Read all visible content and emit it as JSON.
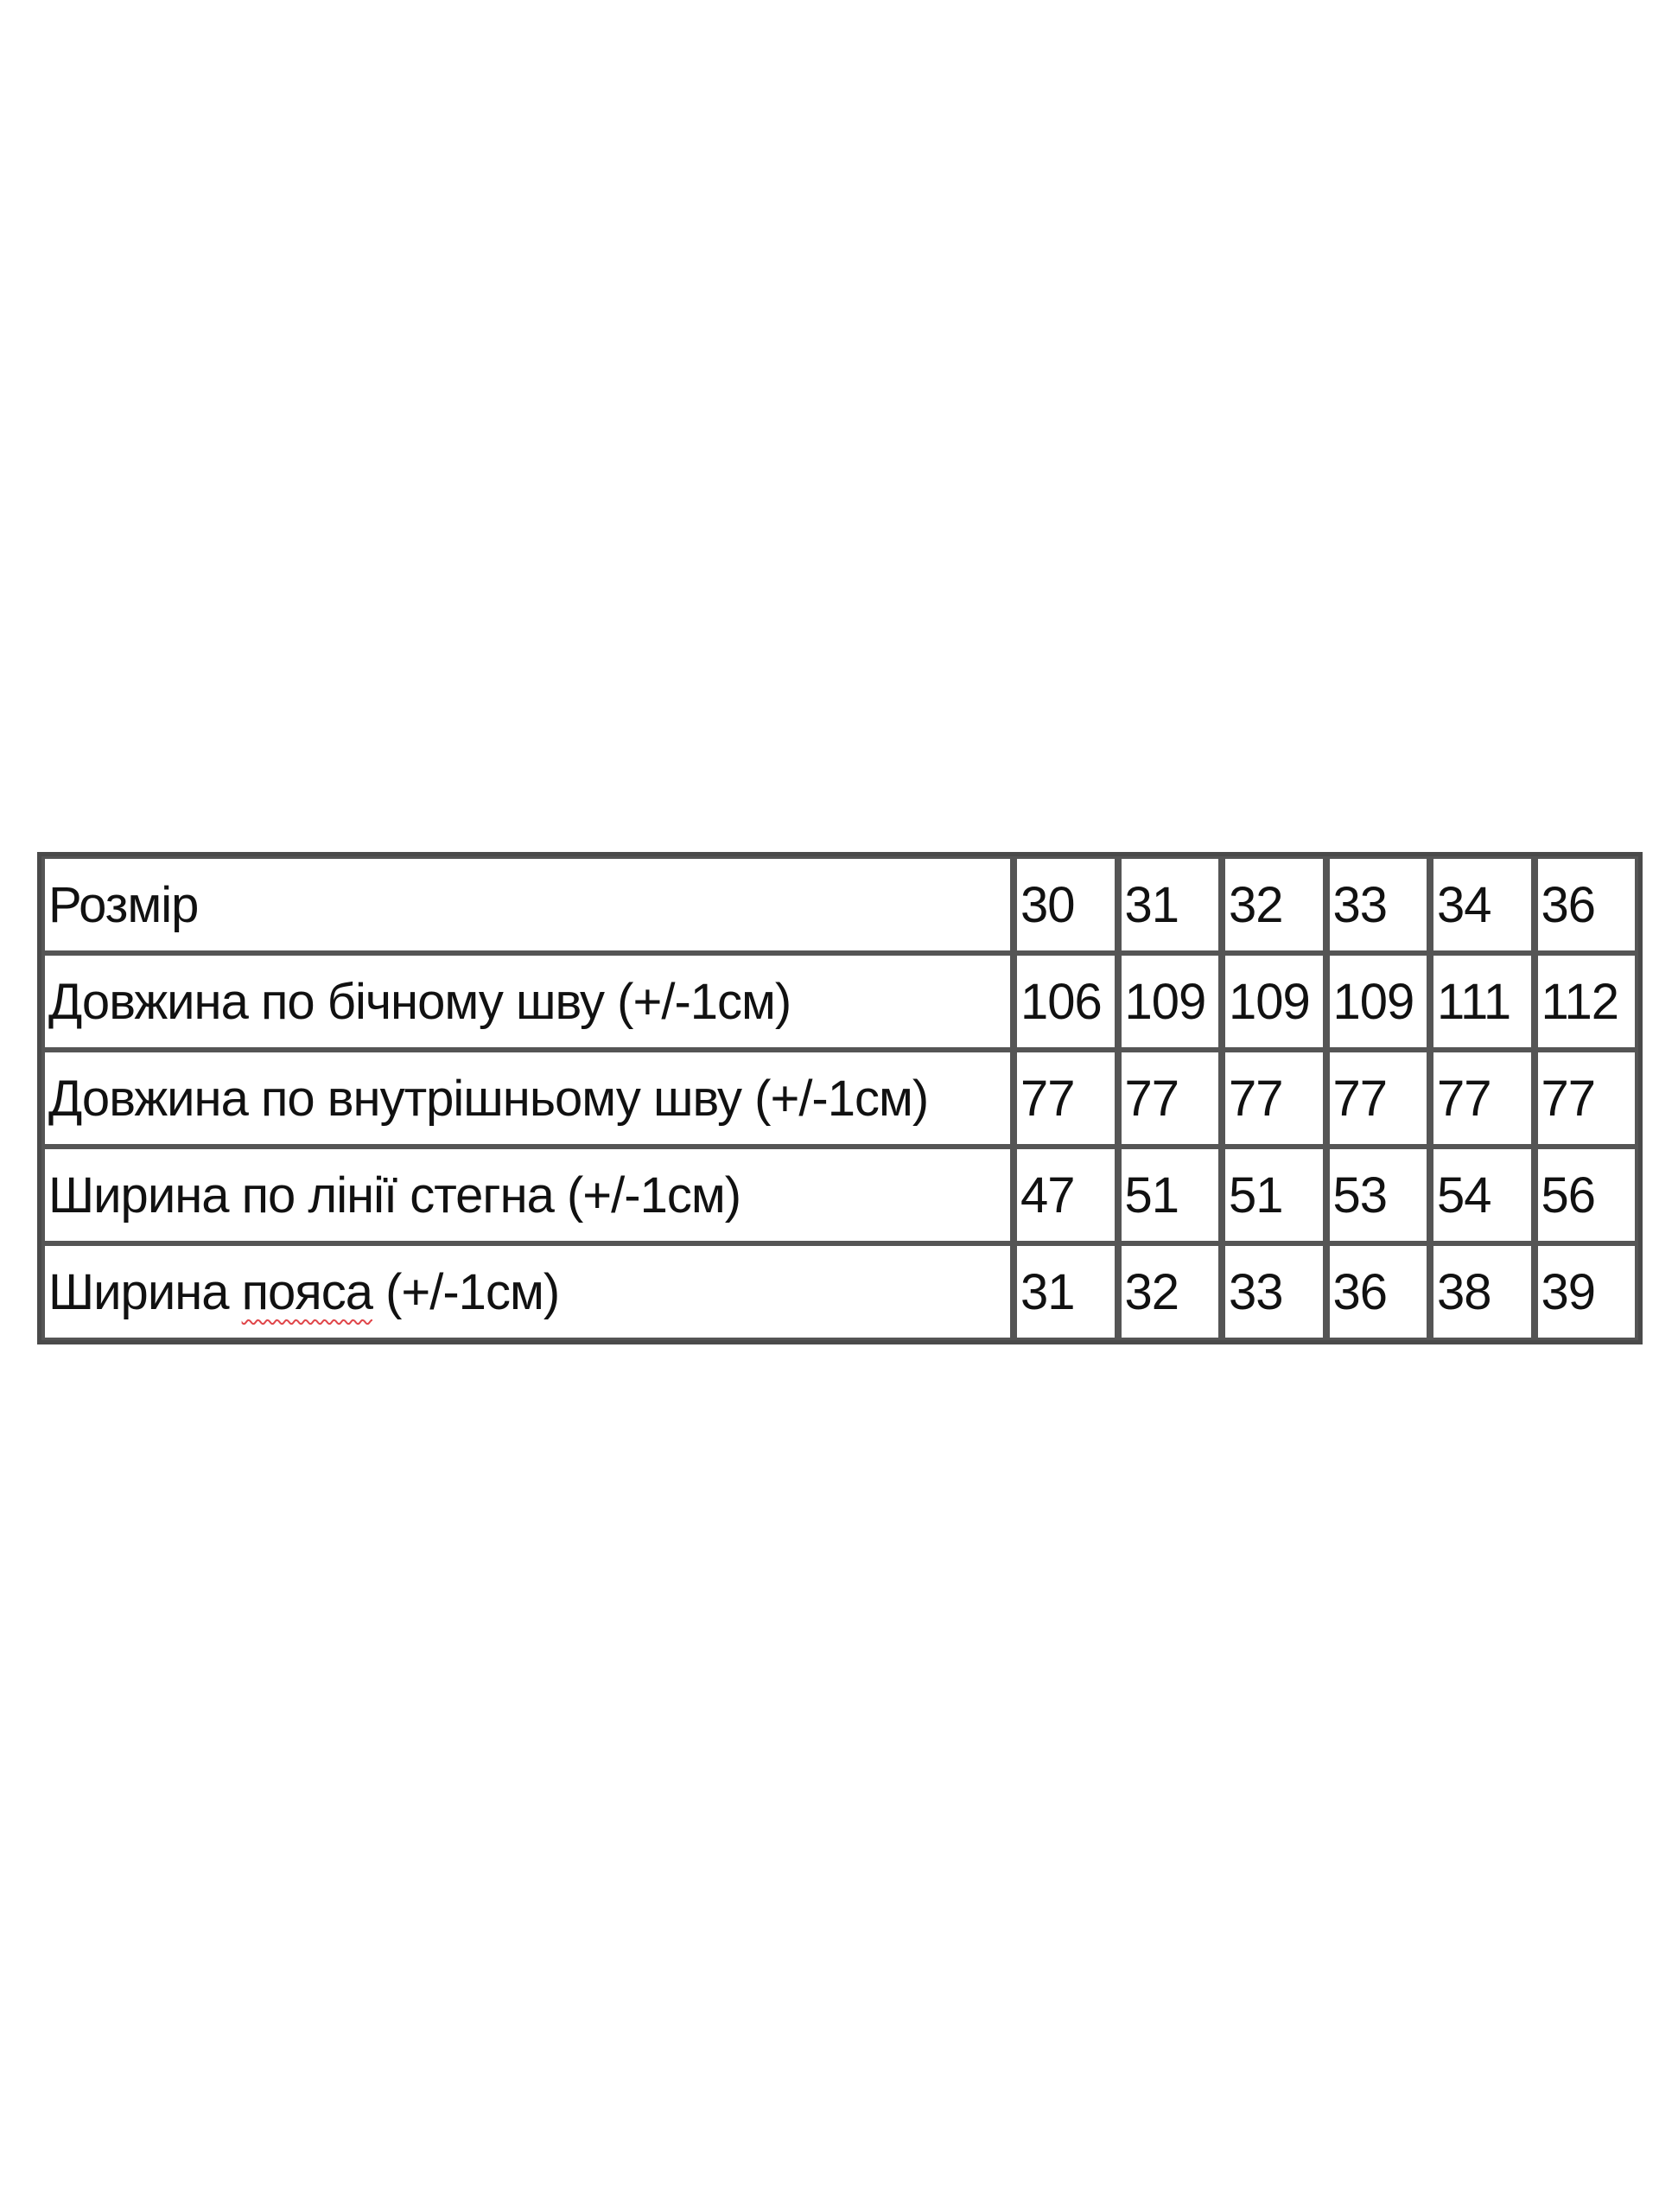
{
  "table": {
    "header": {
      "label": "Розмір",
      "sizes": [
        "30",
        "31",
        "32",
        "33",
        "34",
        "36"
      ]
    },
    "rows": [
      {
        "label": "Довжина по бічному шву (+/-1см)",
        "values": [
          "106",
          "109",
          "109",
          "109",
          "111",
          "112"
        ]
      },
      {
        "label": "Довжина по внутрішньому шву (+/-1см)",
        "values": [
          "77",
          "77",
          "77",
          "77",
          "77",
          "77"
        ]
      },
      {
        "label": "Ширина по лінії стегна (+/-1см)",
        "values": [
          "47",
          "51",
          "51",
          "53",
          "54",
          "56"
        ]
      },
      {
        "label_parts": [
          "Ширина ",
          "пояса",
          " (+/-1см)"
        ],
        "values": [
          "31",
          "32",
          "33",
          "36",
          "38",
          "39"
        ]
      }
    ]
  },
  "colors": {
    "border": "#555555",
    "spellcheck_underline": "#e0464a"
  }
}
